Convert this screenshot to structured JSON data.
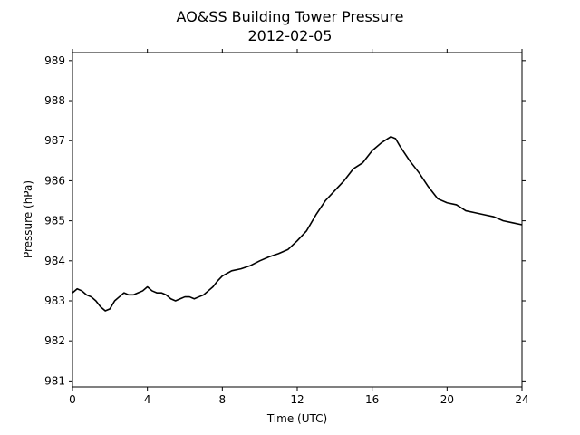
{
  "chart_data": {
    "type": "line",
    "title": "AO&SS Building Tower Pressure",
    "subtitle": "2012-02-05",
    "xlabel": "Time (UTC)",
    "ylabel": "Pressure (hPa)",
    "xlim": [
      0,
      24
    ],
    "ylim": [
      980.85,
      989.2
    ],
    "xticks": [
      0,
      4,
      8,
      12,
      16,
      20,
      24
    ],
    "yticks": [
      981,
      982,
      983,
      984,
      985,
      986,
      987,
      988,
      989
    ],
    "grid": false,
    "series": [
      {
        "color": "#000000",
        "x": [
          0,
          0.25,
          0.5,
          0.75,
          1.0,
          1.25,
          1.5,
          1.75,
          2.0,
          2.25,
          2.5,
          2.75,
          3.0,
          3.25,
          3.5,
          3.75,
          4.0,
          4.25,
          4.5,
          4.75,
          5.0,
          5.25,
          5.5,
          5.75,
          6.0,
          6.25,
          6.5,
          6.75,
          7.0,
          7.25,
          7.5,
          7.75,
          8.0,
          8.5,
          9.0,
          9.5,
          10.0,
          10.5,
          11.0,
          11.5,
          12.0,
          12.5,
          13.0,
          13.5,
          14.0,
          14.5,
          15.0,
          15.5,
          16.0,
          16.5,
          17.0,
          17.25,
          17.5,
          18.0,
          18.5,
          19.0,
          19.5,
          20.0,
          20.5,
          21.0,
          21.5,
          22.0,
          22.5,
          23.0,
          23.5,
          24.0
        ],
        "y": [
          983.2,
          983.3,
          983.25,
          983.15,
          983.1,
          983.0,
          982.85,
          982.75,
          982.8,
          983.0,
          983.1,
          983.2,
          983.15,
          983.15,
          983.2,
          983.25,
          983.35,
          983.25,
          983.2,
          983.2,
          983.15,
          983.05,
          983.0,
          983.05,
          983.1,
          983.1,
          983.05,
          983.1,
          983.15,
          983.25,
          983.35,
          983.5,
          983.62,
          983.75,
          983.8,
          983.88,
          984.0,
          984.1,
          984.18,
          984.28,
          984.5,
          984.75,
          985.15,
          985.5,
          985.75,
          986.0,
          986.3,
          986.45,
          986.75,
          986.95,
          987.1,
          987.05,
          986.85,
          986.5,
          986.2,
          985.85,
          985.55,
          985.45,
          985.4,
          985.25,
          985.2,
          985.15,
          985.1,
          985.0,
          984.95,
          984.9
        ]
      }
    ]
  }
}
